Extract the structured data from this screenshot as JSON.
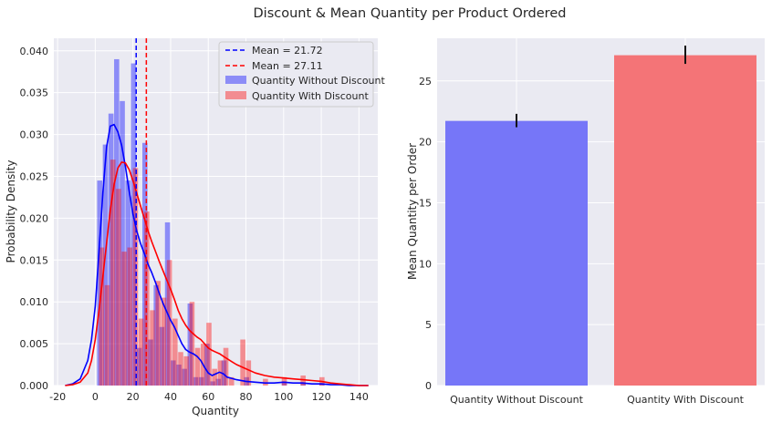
{
  "figure": {
    "suptitle": "Discount & Mean Quantity per Product Ordered"
  },
  "chart_data": [
    {
      "type": "histogram",
      "xlabel": "Quantity",
      "ylabel": "Probability Density",
      "xlim": [
        -22,
        150
      ],
      "ylim": [
        0,
        0.0415
      ],
      "xticks": [
        -20,
        0,
        20,
        40,
        60,
        80,
        100,
        120,
        140
      ],
      "yticks": [
        0.0,
        0.005,
        0.01,
        0.015,
        0.02,
        0.025,
        0.03,
        0.035,
        0.04
      ],
      "grid": true,
      "legend_position": "top-right",
      "mean_lines": [
        {
          "label": "Mean = 21.72",
          "x": 21.72,
          "color": "#0000ff"
        },
        {
          "label": "Mean = 27.11",
          "x": 27.11,
          "color": "#ff0000"
        }
      ],
      "series": [
        {
          "name": "Quantity Without Discount",
          "color": "#0000ff",
          "bins": [
            {
              "x0": 1,
              "x1": 4,
              "density": 0.0245
            },
            {
              "x0": 4,
              "x1": 7,
              "density": 0.0288
            },
            {
              "x0": 7,
              "x1": 10,
              "density": 0.0325
            },
            {
              "x0": 10,
              "x1": 13,
              "density": 0.039
            },
            {
              "x0": 13,
              "x1": 16,
              "density": 0.034
            },
            {
              "x0": 16,
              "x1": 19,
              "density": 0.0245
            },
            {
              "x0": 19,
              "x1": 22,
              "density": 0.0385
            },
            {
              "x0": 22,
              "x1": 25,
              "density": 0.0045
            },
            {
              "x0": 25,
              "x1": 28,
              "density": 0.029
            },
            {
              "x0": 28,
              "x1": 31,
              "density": 0.0055
            },
            {
              "x0": 31,
              "x1": 34,
              "density": 0.012
            },
            {
              "x0": 34,
              "x1": 37,
              "density": 0.007
            },
            {
              "x0": 37,
              "x1": 40,
              "density": 0.0195
            },
            {
              "x0": 40,
              "x1": 43,
              "density": 0.003
            },
            {
              "x0": 43,
              "x1": 46,
              "density": 0.0025
            },
            {
              "x0": 46,
              "x1": 49,
              "density": 0.002
            },
            {
              "x0": 49,
              "x1": 52,
              "density": 0.0098
            },
            {
              "x0": 52,
              "x1": 55,
              "density": 0.001
            },
            {
              "x0": 55,
              "x1": 58,
              "density": 0.001
            },
            {
              "x0": 58,
              "x1": 61,
              "density": 0.005
            },
            {
              "x0": 61,
              "x1": 64,
              "density": 0.0005
            },
            {
              "x0": 64,
              "x1": 67,
              "density": 0.0008
            },
            {
              "x0": 67,
              "x1": 70,
              "density": 0.003
            },
            {
              "x0": 79,
              "x1": 82,
              "density": 0.001
            },
            {
              "x0": 99,
              "x1": 102,
              "density": 0.0005
            },
            {
              "x0": 109,
              "x1": 112,
              "density": 0.0004
            },
            {
              "x0": 119,
              "x1": 122,
              "density": 0.0003
            }
          ],
          "kde": {
            "x": [
              -16,
              -12,
              -8,
              -4,
              -2,
              0,
              2,
              4,
              6,
              8,
              10,
              12,
              14,
              16,
              18,
              20,
              22,
              24,
              26,
              28,
              30,
              32,
              34,
              36,
              38,
              40,
              42,
              44,
              46,
              48,
              50,
              52,
              54,
              56,
              58,
              60,
              62,
              64,
              66,
              68,
              70,
              75,
              80,
              85,
              90,
              95,
              100,
              105,
              110,
              115,
              120,
              125,
              130,
              135,
              140,
              145
            ],
            "y": [
              0.0,
              0.0002,
              0.0008,
              0.003,
              0.0055,
              0.0095,
              0.016,
              0.023,
              0.0285,
              0.031,
              0.0312,
              0.0303,
              0.0287,
              0.0262,
              0.0232,
              0.0205,
              0.0185,
              0.017,
              0.0158,
              0.0145,
              0.0135,
              0.0123,
              0.011,
              0.0098,
              0.0088,
              0.0078,
              0.007,
              0.006,
              0.005,
              0.0043,
              0.004,
              0.0038,
              0.0035,
              0.003,
              0.0022,
              0.0015,
              0.0012,
              0.0014,
              0.0016,
              0.0014,
              0.001,
              0.0007,
              0.0005,
              0.0004,
              0.0003,
              0.0003,
              0.0004,
              0.0003,
              0.0003,
              0.0002,
              0.0002,
              0.0001,
              0.0001,
              0.0,
              0.0,
              0.0
            ]
          }
        },
        {
          "name": "Quantity With Discount",
          "color": "#ff0000",
          "bins": [
            {
              "x0": 2,
              "x1": 5,
              "density": 0.0165
            },
            {
              "x0": 5,
              "x1": 8,
              "density": 0.012
            },
            {
              "x0": 8,
              "x1": 11,
              "density": 0.027
            },
            {
              "x0": 11,
              "x1": 14,
              "density": 0.0235
            },
            {
              "x0": 14,
              "x1": 17,
              "density": 0.016
            },
            {
              "x0": 17,
              "x1": 20,
              "density": 0.0165
            },
            {
              "x0": 20,
              "x1": 23,
              "density": 0.026
            },
            {
              "x0": 23,
              "x1": 26,
              "density": 0.008
            },
            {
              "x0": 26,
              "x1": 29,
              "density": 0.0208
            },
            {
              "x0": 29,
              "x1": 32,
              "density": 0.009
            },
            {
              "x0": 32,
              "x1": 35,
              "density": 0.0125
            },
            {
              "x0": 35,
              "x1": 38,
              "density": 0.0105
            },
            {
              "x0": 38,
              "x1": 41,
              "density": 0.015
            },
            {
              "x0": 41,
              "x1": 44,
              "density": 0.008
            },
            {
              "x0": 44,
              "x1": 47,
              "density": 0.004
            },
            {
              "x0": 47,
              "x1": 50,
              "density": 0.0035
            },
            {
              "x0": 50,
              "x1": 53,
              "density": 0.01
            },
            {
              "x0": 53,
              "x1": 56,
              "density": 0.0045
            },
            {
              "x0": 56,
              "x1": 59,
              "density": 0.005
            },
            {
              "x0": 59,
              "x1": 62,
              "density": 0.0075
            },
            {
              "x0": 62,
              "x1": 65,
              "density": 0.002
            },
            {
              "x0": 65,
              "x1": 68,
              "density": 0.003
            },
            {
              "x0": 68,
              "x1": 71,
              "density": 0.0045
            },
            {
              "x0": 71,
              "x1": 74,
              "density": 0.001
            },
            {
              "x0": 77,
              "x1": 80,
              "density": 0.0055
            },
            {
              "x0": 80,
              "x1": 83,
              "density": 0.003
            },
            {
              "x0": 89,
              "x1": 92,
              "density": 0.0008
            },
            {
              "x0": 99,
              "x1": 102,
              "density": 0.001
            },
            {
              "x0": 109,
              "x1": 112,
              "density": 0.0012
            },
            {
              "x0": 119,
              "x1": 122,
              "density": 0.001
            }
          ],
          "kde": {
            "x": [
              -16,
              -12,
              -8,
              -4,
              -2,
              0,
              2,
              4,
              6,
              8,
              10,
              12,
              14,
              16,
              18,
              20,
              22,
              24,
              26,
              28,
              30,
              32,
              34,
              36,
              38,
              40,
              42,
              44,
              46,
              48,
              50,
              52,
              54,
              56,
              58,
              60,
              62,
              64,
              66,
              68,
              70,
              75,
              80,
              85,
              90,
              95,
              100,
              105,
              110,
              115,
              120,
              125,
              130,
              135,
              140,
              145
            ],
            "y": [
              0.0,
              0.0001,
              0.0004,
              0.0015,
              0.003,
              0.0055,
              0.009,
              0.013,
              0.017,
              0.021,
              0.024,
              0.026,
              0.0267,
              0.0266,
              0.0258,
              0.0245,
              0.023,
              0.0215,
              0.02,
              0.0185,
              0.0172,
              0.016,
              0.0148,
              0.0137,
              0.0126,
              0.0115,
              0.0103,
              0.009,
              0.008,
              0.0072,
              0.0066,
              0.0062,
              0.0058,
              0.0055,
              0.005,
              0.0045,
              0.0042,
              0.004,
              0.0038,
              0.0035,
              0.0032,
              0.0025,
              0.002,
              0.0015,
              0.0012,
              0.001,
              0.0009,
              0.0008,
              0.0007,
              0.0006,
              0.0005,
              0.0003,
              0.0002,
              0.0001,
              0.0,
              0.0
            ]
          }
        }
      ]
    },
    {
      "type": "bar",
      "categories": [
        "Quantity Without Discount",
        "Quantity With Discount"
      ],
      "values": [
        21.72,
        27.11
      ],
      "errors": [
        [
          21.2,
          22.3
        ],
        [
          26.4,
          27.9
        ]
      ],
      "colors": [
        "#7676f8",
        "#f47477"
      ],
      "xlabel": "",
      "ylabel": "Mean Quantity per Order",
      "ylim": [
        0,
        28.5
      ],
      "yticks": [
        0,
        5,
        10,
        15,
        20,
        25
      ],
      "grid": true
    }
  ]
}
